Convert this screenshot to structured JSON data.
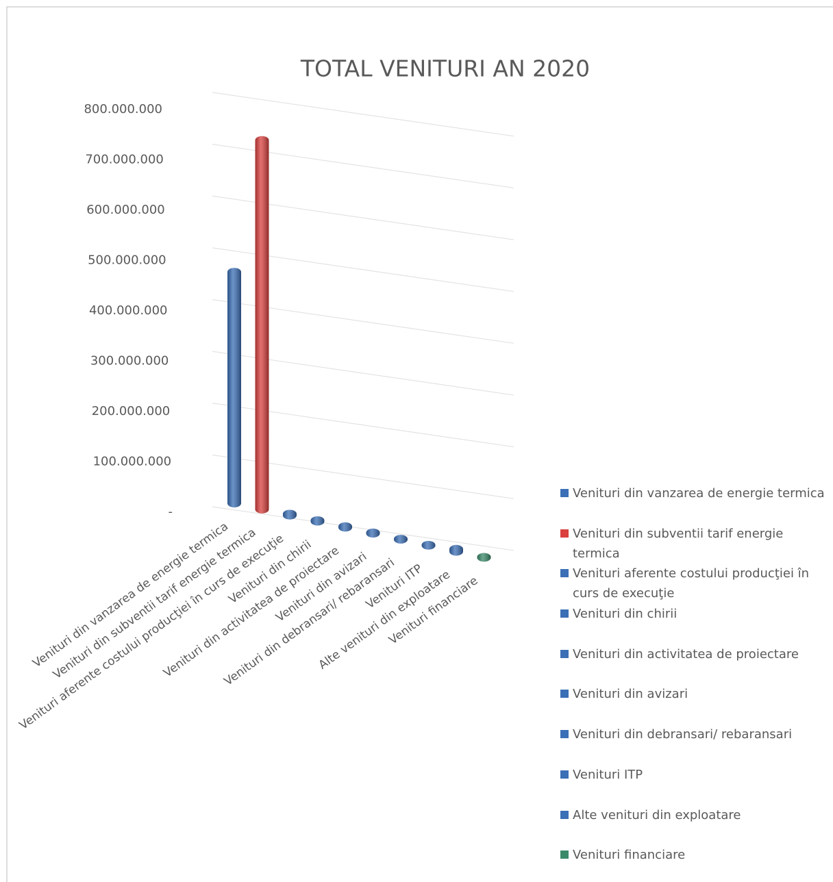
{
  "chart_data": {
    "type": "bar3d",
    "title": "TOTAL VENITURI AN 2020",
    "categories": [
      "Venituri din vanzarea de energie termica",
      "Venituri din subventii tarif energie termica",
      "Venituri aferente costului producţiei în curs de execuţie",
      "Venituri din chirii",
      "Venituri din activitatea de proiectare",
      "Venituri din avizari",
      "Venituri din debransari/ rebaransari",
      "Venituri ITP",
      "Alte venituri din exploatare",
      "Venituri financiare"
    ],
    "values": [
      470000000,
      750000000,
      3000000,
      2000000,
      2000000,
      1500000,
      1000000,
      1000000,
      5000000,
      1000000
    ],
    "colors": [
      "#3b6fb6",
      "#d9403e",
      "#3b6fb6",
      "#3b6fb6",
      "#3b6fb6",
      "#3b6fb6",
      "#3b6fb6",
      "#3b6fb6",
      "#3b6fb6",
      "#3a8a6a"
    ],
    "ylim": [
      0,
      800000000
    ],
    "yticks": [
      {
        "value": 0,
        "label": "-"
      },
      {
        "value": 100000000,
        "label": "100.000.000"
      },
      {
        "value": 200000000,
        "label": "200.000.000"
      },
      {
        "value": 300000000,
        "label": "300.000.000"
      },
      {
        "value": 400000000,
        "label": "400.000.000"
      },
      {
        "value": 500000000,
        "label": "500.000.000"
      },
      {
        "value": 600000000,
        "label": "600.000.000"
      },
      {
        "value": 700000000,
        "label": "700.000.000"
      },
      {
        "value": 800000000,
        "label": "800.000.000"
      }
    ],
    "grid": true,
    "legend": "right"
  }
}
